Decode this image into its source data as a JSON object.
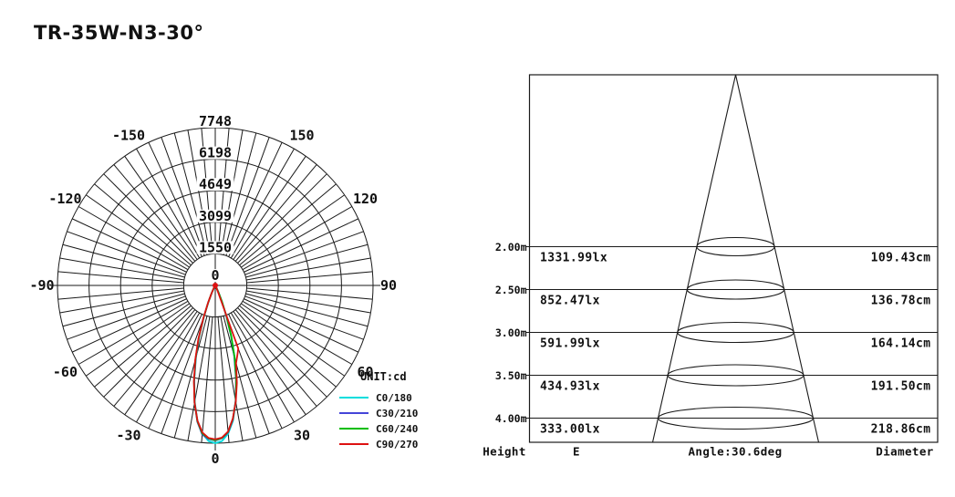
{
  "title": "TR-35W-N3-30°",
  "chart_data": [
    {
      "type": "line",
      "subtype": "polar-luminous-intensity",
      "units": "cd",
      "legend_title": "UNIT:cd",
      "center_label": "0",
      "radial_ticks": [
        0,
        1550,
        3099,
        4649,
        6198,
        7748
      ],
      "radial_max": 7748,
      "angle_ticks": [
        -150,
        -120,
        -90,
        -60,
        -30,
        0,
        30,
        60,
        90,
        120,
        150
      ],
      "grid_step_deg": 5,
      "legend_position": "bottom-right",
      "series": [
        {
          "name": "C0/180",
          "color": "#00dddd",
          "points": [
            [
              -180,
              0
            ],
            [
              -90,
              0
            ],
            [
              -45,
              0
            ],
            [
              -40,
              5
            ],
            [
              -35,
              15
            ],
            [
              -30,
              60
            ],
            [
              -27.5,
              150
            ],
            [
              -25,
              380
            ],
            [
              -22.5,
              850
            ],
            [
              -20,
              1600
            ],
            [
              -17.5,
              2600
            ],
            [
              -15,
              3650
            ],
            [
              -12.5,
              4750
            ],
            [
              -10,
              5800
            ],
            [
              -7.5,
              6700
            ],
            [
              -5,
              7300
            ],
            [
              -2.5,
              7650
            ],
            [
              0,
              7748
            ],
            [
              2.5,
              7650
            ],
            [
              5,
              7300
            ],
            [
              7.5,
              6700
            ],
            [
              10,
              5800
            ],
            [
              12.5,
              4750
            ],
            [
              15,
              3650
            ],
            [
              17.5,
              2600
            ],
            [
              20,
              1600
            ],
            [
              22.5,
              850
            ],
            [
              25,
              380
            ],
            [
              27.5,
              150
            ],
            [
              30,
              60
            ],
            [
              35,
              15
            ],
            [
              40,
              5
            ],
            [
              45,
              0
            ],
            [
              90,
              0
            ],
            [
              180,
              0
            ]
          ]
        },
        {
          "name": "C30/210",
          "color": "#4545d8",
          "points": [
            [
              -180,
              0
            ],
            [
              -90,
              0
            ],
            [
              -45,
              0
            ],
            [
              -40,
              5
            ],
            [
              -35,
              18
            ],
            [
              -30,
              70
            ],
            [
              -27.5,
              170
            ],
            [
              -25,
              420
            ],
            [
              -22.5,
              900
            ],
            [
              -20,
              1650
            ],
            [
              -17.5,
              2650
            ],
            [
              -15,
              3700
            ],
            [
              -12.5,
              4800
            ],
            [
              -10,
              5850
            ],
            [
              -7.5,
              6750
            ],
            [
              -5,
              7350
            ],
            [
              -2.5,
              7550
            ],
            [
              0,
              7620
            ],
            [
              2.5,
              7520
            ],
            [
              5,
              7250
            ],
            [
              7.5,
              6650
            ],
            [
              10,
              5750
            ],
            [
              12.5,
              4700
            ],
            [
              15,
              3600
            ],
            [
              17.5,
              2550
            ],
            [
              20,
              1550
            ],
            [
              22.5,
              820
            ],
            [
              25,
              360
            ],
            [
              27.5,
              140
            ],
            [
              30,
              55
            ],
            [
              35,
              12
            ],
            [
              40,
              4
            ],
            [
              45,
              0
            ],
            [
              90,
              0
            ],
            [
              180,
              0
            ]
          ]
        },
        {
          "name": "C60/240",
          "color": "#00bd00",
          "points": [
            [
              -180,
              0
            ],
            [
              -90,
              0
            ],
            [
              -45,
              0
            ],
            [
              -40,
              5
            ],
            [
              -35,
              18
            ],
            [
              -30,
              75
            ],
            [
              -27.5,
              180
            ],
            [
              -25,
              430
            ],
            [
              -22.5,
              930
            ],
            [
              -20,
              1680
            ],
            [
              -17.5,
              2700
            ],
            [
              -15,
              3750
            ],
            [
              -12.5,
              4820
            ],
            [
              -10,
              5850
            ],
            [
              -7.5,
              6720
            ],
            [
              -5,
              7300
            ],
            [
              -2.5,
              7520
            ],
            [
              0,
              7600
            ],
            [
              2.5,
              7500
            ],
            [
              5,
              7220
            ],
            [
              7.5,
              6620
            ],
            [
              10,
              5780
            ],
            [
              12.5,
              4760
            ],
            [
              15,
              3680
            ],
            [
              17.5,
              2620
            ],
            [
              20,
              1620
            ],
            [
              22.5,
              860
            ],
            [
              25,
              380
            ],
            [
              27.5,
              150
            ],
            [
              30,
              60
            ],
            [
              35,
              14
            ],
            [
              40,
              4
            ],
            [
              45,
              0
            ],
            [
              90,
              0
            ],
            [
              180,
              0
            ]
          ]
        },
        {
          "name": "C90/270",
          "color": "#dd1111",
          "points": [
            [
              -180,
              0
            ],
            [
              -90,
              0
            ],
            [
              -45,
              0
            ],
            [
              -40,
              6
            ],
            [
              -35,
              20
            ],
            [
              -30,
              80
            ],
            [
              -27.5,
              190
            ],
            [
              -25,
              430
            ],
            [
              -22.5,
              950
            ],
            [
              -20,
              1700
            ],
            [
              -17.5,
              2750
            ],
            [
              -15,
              3800
            ],
            [
              -12.5,
              4850
            ],
            [
              -10,
              5850
            ],
            [
              -7.5,
              6700
            ],
            [
              -5,
              7250
            ],
            [
              -2.5,
              7500
            ],
            [
              0,
              7560
            ],
            [
              2.5,
              7480
            ],
            [
              5,
              7200
            ],
            [
              7.5,
              6600
            ],
            [
              10,
              5800
            ],
            [
              12.5,
              4900
            ],
            [
              15,
              3950
            ],
            [
              17.5,
              3600
            ],
            [
              20,
              3300
            ],
            [
              22.5,
              350
            ],
            [
              25,
              130
            ],
            [
              27.5,
              70
            ],
            [
              30,
              35
            ],
            [
              35,
              10
            ],
            [
              40,
              3
            ],
            [
              45,
              0
            ],
            [
              90,
              0
            ],
            [
              180,
              0
            ]
          ]
        }
      ]
    },
    {
      "type": "table",
      "subtype": "beam-cone-diagram",
      "beam_angle_deg": 30.6,
      "heights_m": [
        2.0,
        2.5,
        3.0,
        3.5,
        4.0
      ],
      "E_lux": [
        1331.99,
        852.47,
        591.99,
        434.93,
        333.0
      ],
      "diameter_cm": [
        109.43,
        136.78,
        164.14,
        191.5,
        218.86
      ],
      "rows": [
        {
          "height": "2.00m",
          "e": "1331.99lx",
          "diameter": "109.43cm"
        },
        {
          "height": "2.50m",
          "e": "852.47lx",
          "diameter": "136.78cm"
        },
        {
          "height": "3.00m",
          "e": "591.99lx",
          "diameter": "164.14cm"
        },
        {
          "height": "3.50m",
          "e": "434.93lx",
          "diameter": "191.50cm"
        },
        {
          "height": "4.00m",
          "e": "333.00lx",
          "diameter": "218.86cm"
        }
      ],
      "footer": {
        "height": "Height",
        "e": "E",
        "angle": "Angle:30.6deg",
        "diameter": "Diameter"
      }
    }
  ],
  "colors": {
    "grid": "#1a1a1a",
    "text": "#111111",
    "background": "#ffffff",
    "center_dot": "#dd1111"
  }
}
